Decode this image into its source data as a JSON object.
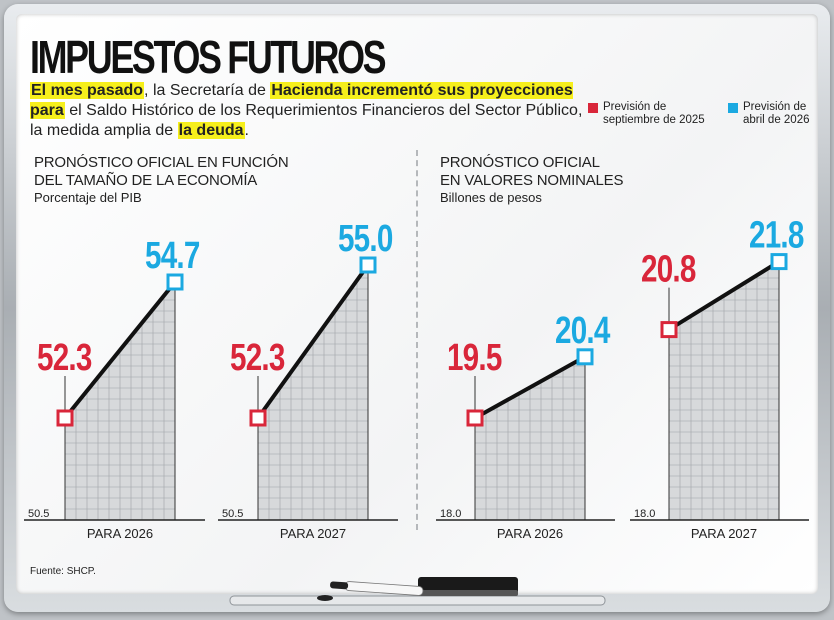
{
  "title": "IMPUESTOS FUTUROS",
  "intro": {
    "s1": "El mes pasado",
    "s2": ", la Secretaría de ",
    "s3": "Hacienda incrementó sus proyecciones para",
    "s4": " el Saldo Histórico de los Requerimientos Financieros del Sector Público, la medida amplia de ",
    "s5": "la deuda",
    "s6": "."
  },
  "legend": [
    {
      "name": "Previsión de\nseptiembre de 2025",
      "color": "#d9263a"
    },
    {
      "name": "Previsión de\nabril de 2026",
      "color": "#1ba9e1"
    }
  ],
  "panels": [
    {
      "title_l1": "PRONÓSTICO OFICIAL EN FUNCIÓN",
      "title_l2": "DEL TAMAÑO DE LA ECONOMÍA",
      "unit": "Porcentaje del PIB"
    },
    {
      "title_l1": "PRONÓSTICO OFICIAL",
      "title_l2": "EN VALORES NOMINALES",
      "unit": "Billones de pesos"
    }
  ],
  "source": "Fuente: SHCP.",
  "colors": {
    "sept": "#d9263a",
    "abril": "#1ba9e1",
    "fill": "#d7d9db",
    "grid": "#9da2a6"
  },
  "chart_data": [
    {
      "type": "line",
      "category": "PARA 2026",
      "x": [
        "Previsión de septiembre de 2025",
        "Previsión de abril de 2026"
      ],
      "values": [
        52.3,
        54.7
      ],
      "labels": [
        "52.3",
        "54.7"
      ],
      "ymin": 50.5,
      "ymin_label": "50.5",
      "ylim": [
        50.5,
        55.3
      ]
    },
    {
      "type": "line",
      "category": "PARA 2027",
      "x": [
        "Previsión de septiembre de 2025",
        "Previsión de abril de 2026"
      ],
      "values": [
        52.3,
        55.0
      ],
      "labels": [
        "52.3",
        "55.0"
      ],
      "ymin": 50.5,
      "ymin_label": "50.5",
      "ylim": [
        50.5,
        55.3
      ]
    },
    {
      "type": "line",
      "category": "PARA 2026",
      "x": [
        "Previsión de septiembre de 2025",
        "Previsión de abril de 2026"
      ],
      "values": [
        19.5,
        20.4
      ],
      "labels": [
        "19.5",
        "20.4"
      ],
      "ymin": 18.0,
      "ymin_label": "18.0",
      "ylim": [
        18.0,
        22.0
      ]
    },
    {
      "type": "line",
      "category": "PARA 2027",
      "x": [
        "Previsión de septiembre de 2025",
        "Previsión de abril de 2026"
      ],
      "values": [
        20.8,
        21.8
      ],
      "labels": [
        "20.8",
        "21.8"
      ],
      "ymin": 18.0,
      "ymin_label": "18.0",
      "ylim": [
        18.0,
        22.0
      ]
    }
  ]
}
